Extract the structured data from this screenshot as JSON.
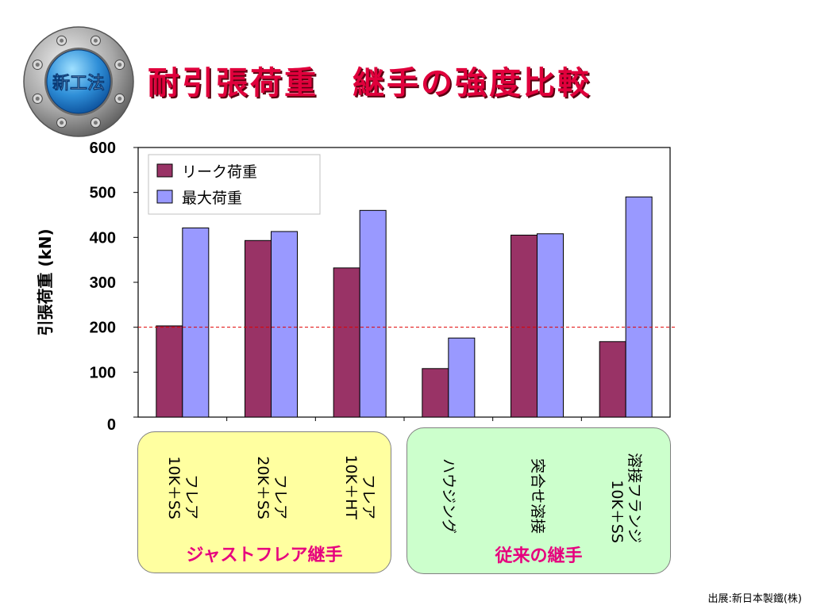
{
  "badge": {
    "text": "新工法",
    "icon": "gear-ring-badge-icon"
  },
  "slide_title": "耐引張荷重　継手の強度比較",
  "groups": [
    {
      "label": "ジャストフレア継手",
      "color": "#ffffa0"
    },
    {
      "label": "従来の継手",
      "color": "#ccffcc"
    }
  ],
  "categories": [
    [
      "フレア",
      "10K＋SS"
    ],
    [
      "フレア",
      "20K＋SS"
    ],
    [
      "フレア",
      "10K＋HT"
    ],
    [
      "ハウジング"
    ],
    [
      "突合せ溶接"
    ],
    [
      "溶接フランジ",
      "10K＋SS"
    ]
  ],
  "source": "出展:新日本製鐵(株)",
  "chart_data": {
    "type": "bar",
    "ylabel": "引張荷重 (kN)",
    "ylim": [
      0,
      600
    ],
    "yticks": [
      "0",
      "100",
      "200",
      "300",
      "400",
      "500",
      "600"
    ],
    "reference_line": 200,
    "legend_position": "top-left",
    "series": [
      {
        "name": "リーク荷重",
        "color": "#993366",
        "values": [
          203,
          393,
          332,
          108,
          405,
          168
        ]
      },
      {
        "name": "最大荷重",
        "color": "#9999ff",
        "values": [
          421,
          413,
          460,
          176,
          408,
          490
        ]
      }
    ]
  }
}
